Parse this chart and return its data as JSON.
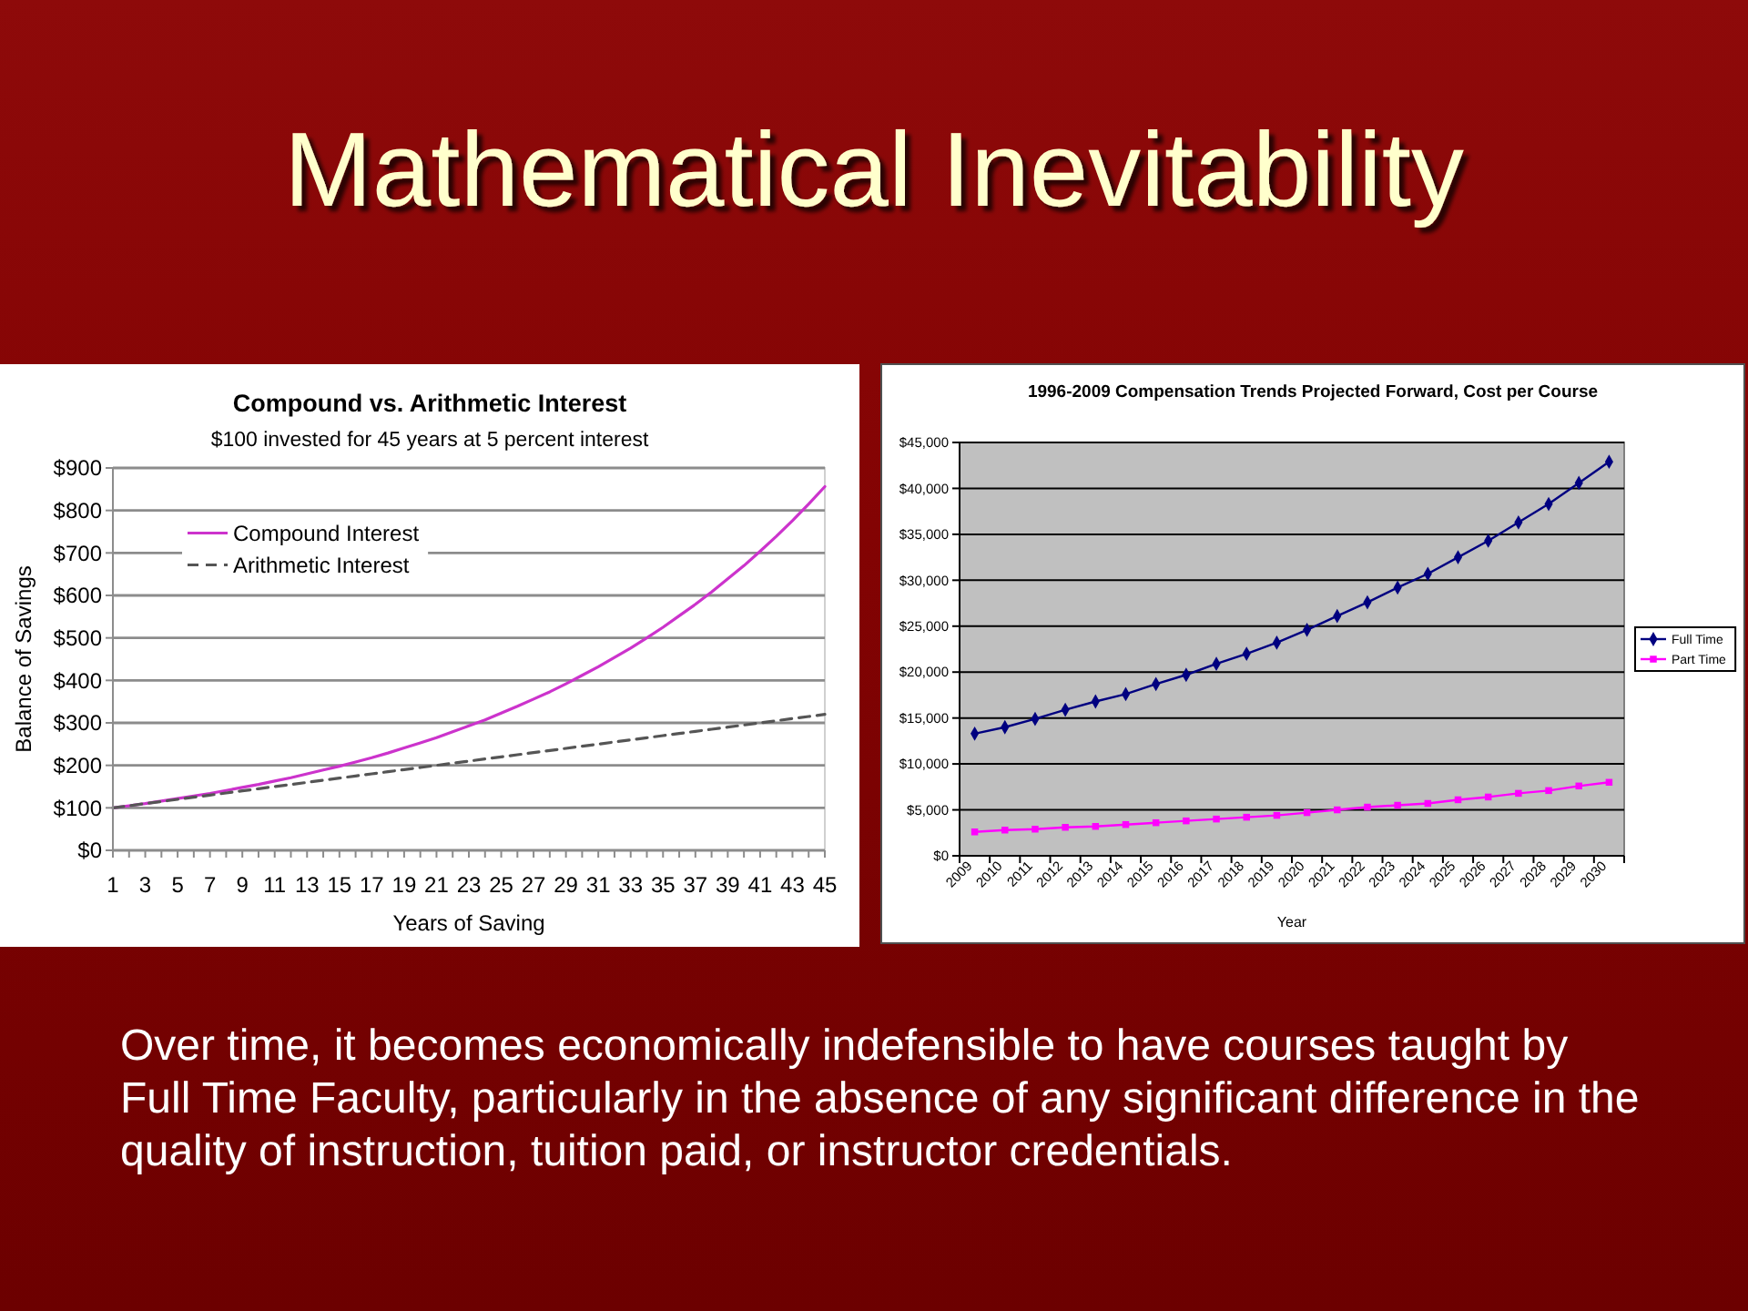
{
  "chart_data": [
    {
      "type": "other",
      "title": "Mathematical Inevitability",
      "annotations": [
        "Over time, it becomes economically indefensible to have courses taught by Full Time Faculty, particularly in the absence of any significant difference in the quality of instruction, tuition paid, or instructor credentials."
      ]
    },
    {
      "type": "line",
      "title": "Compound vs. Arithmetic Interest",
      "subtitle": "$100 invested for 45 years at 5 percent interest",
      "xlabel": "Years of Saving",
      "ylabel": "Balance of Savings",
      "x": [
        1,
        2,
        3,
        4,
        5,
        6,
        7,
        8,
        9,
        10,
        11,
        12,
        13,
        14,
        15,
        16,
        17,
        18,
        19,
        20,
        21,
        22,
        23,
        24,
        25,
        26,
        27,
        28,
        29,
        30,
        31,
        32,
        33,
        34,
        35,
        36,
        37,
        38,
        39,
        40,
        41,
        42,
        43,
        44,
        45
      ],
      "series": [
        {
          "name": "Compound Interest",
          "color": "#cc33cc",
          "values": [
            100,
            105,
            110,
            116,
            122,
            128,
            134,
            141,
            148,
            155,
            163,
            171,
            180,
            189,
            198,
            208,
            218,
            229,
            241,
            253,
            265,
            279,
            293,
            307,
            323,
            339,
            356,
            373,
            392,
            412,
            432,
            454,
            476,
            500,
            525,
            552,
            579,
            608,
            639,
            670,
            704,
            739,
            776,
            815,
            856
          ]
        },
        {
          "name": "Arithmetic Interest",
          "color": "#555555",
          "line_style": "dashed",
          "values": [
            100,
            105,
            110,
            115,
            120,
            125,
            130,
            135,
            140,
            145,
            150,
            155,
            160,
            165,
            170,
            175,
            180,
            185,
            190,
            195,
            200,
            205,
            210,
            215,
            220,
            225,
            230,
            235,
            240,
            245,
            250,
            255,
            260,
            265,
            270,
            275,
            280,
            285,
            290,
            295,
            300,
            305,
            310,
            315,
            320
          ]
        }
      ],
      "xlim": [
        1,
        45
      ],
      "xticks": [
        1,
        {
          "value": 2,
          "label": null
        },
        3,
        {
          "value": 4,
          "label": null
        },
        5,
        {
          "value": 6,
          "label": null
        },
        7,
        {
          "value": 8,
          "label": null
        },
        9,
        {
          "value": 10,
          "label": null
        },
        11,
        {
          "value": 12,
          "label": null
        },
        13,
        {
          "value": 14,
          "label": null
        },
        15,
        {
          "value": 16,
          "label": null
        },
        17,
        {
          "value": 18,
          "label": null
        },
        19,
        {
          "value": 20,
          "label": null
        },
        21,
        {
          "value": 22,
          "label": null
        },
        23,
        {
          "value": 24,
          "label": null
        },
        25,
        {
          "value": 26,
          "label": null
        },
        27,
        {
          "value": 28,
          "label": null
        },
        29,
        {
          "value": 30,
          "label": null
        },
        31,
        {
          "value": 32,
          "label": null
        },
        33,
        {
          "value": 34,
          "label": null
        },
        35,
        {
          "value": 36,
          "label": null
        },
        37,
        {
          "value": 38,
          "label": null
        },
        39,
        {
          "value": 40,
          "label": null
        },
        41,
        {
          "value": 42,
          "label": null
        },
        43,
        {
          "value": 44,
          "label": null
        },
        45
      ],
      "ylim": [
        0,
        900
      ],
      "yticks": [
        {
          "value": 0,
          "label": "$0"
        },
        {
          "value": 100,
          "label": "$100"
        },
        {
          "value": 200,
          "label": "$200"
        },
        {
          "value": 300,
          "label": "$300"
        },
        {
          "value": 400,
          "label": "$400"
        },
        {
          "value": 500,
          "label": "$500"
        },
        {
          "value": 600,
          "label": "$600"
        },
        {
          "value": 700,
          "label": "$700"
        },
        {
          "value": 800,
          "label": "$800"
        },
        {
          "value": 900,
          "label": "$900"
        }
      ],
      "grid": "y",
      "legend": "top left"
    },
    {
      "type": "line",
      "title": "1996-2009 Compensation Trends Projected Forward, Cost per Course",
      "xlabel": "Year",
      "categories": [
        "2009",
        "2010",
        "2011",
        "2012",
        "2013",
        "2014",
        "2015",
        "2016",
        "2017",
        "2018",
        "2019",
        "2020",
        "2021",
        "2022",
        "2023",
        "2024",
        "2025",
        "2026",
        "2027",
        "2028",
        "2029",
        "2030"
      ],
      "series": [
        {
          "name": "Full Time",
          "color": "#000080",
          "marker": "diamond",
          "values": [
            13300,
            14000,
            14900,
            15900,
            16800,
            17600,
            18700,
            19700,
            20900,
            22000,
            23200,
            24600,
            26100,
            27600,
            29200,
            30700,
            32500,
            34300,
            36300,
            38300,
            40600,
            42900
          ]
        },
        {
          "name": "Part Time",
          "color": "#ff00ff",
          "marker": "square",
          "values": [
            2600,
            2800,
            2900,
            3100,
            3200,
            3400,
            3600,
            3800,
            4000,
            4200,
            4400,
            4700,
            5000,
            5300,
            5500,
            5700,
            6100,
            6400,
            6800,
            7100,
            7600,
            8000
          ]
        }
      ],
      "ylim": [
        0,
        45000
      ],
      "yticks": [
        {
          "value": 0,
          "label": "$0"
        },
        {
          "value": 5000,
          "label": "$5,000"
        },
        {
          "value": 10000,
          "label": "$10,000"
        },
        {
          "value": 15000,
          "label": "$15,000"
        },
        {
          "value": 20000,
          "label": "$20,000"
        },
        {
          "value": 25000,
          "label": "$25,000"
        },
        {
          "value": 30000,
          "label": "$30,000"
        },
        {
          "value": 35000,
          "label": "$35,000"
        },
        {
          "value": 40000,
          "label": "$40,000"
        },
        {
          "value": 45000,
          "label": "$45,000"
        }
      ],
      "grid": "y",
      "legend": "right"
    }
  ]
}
